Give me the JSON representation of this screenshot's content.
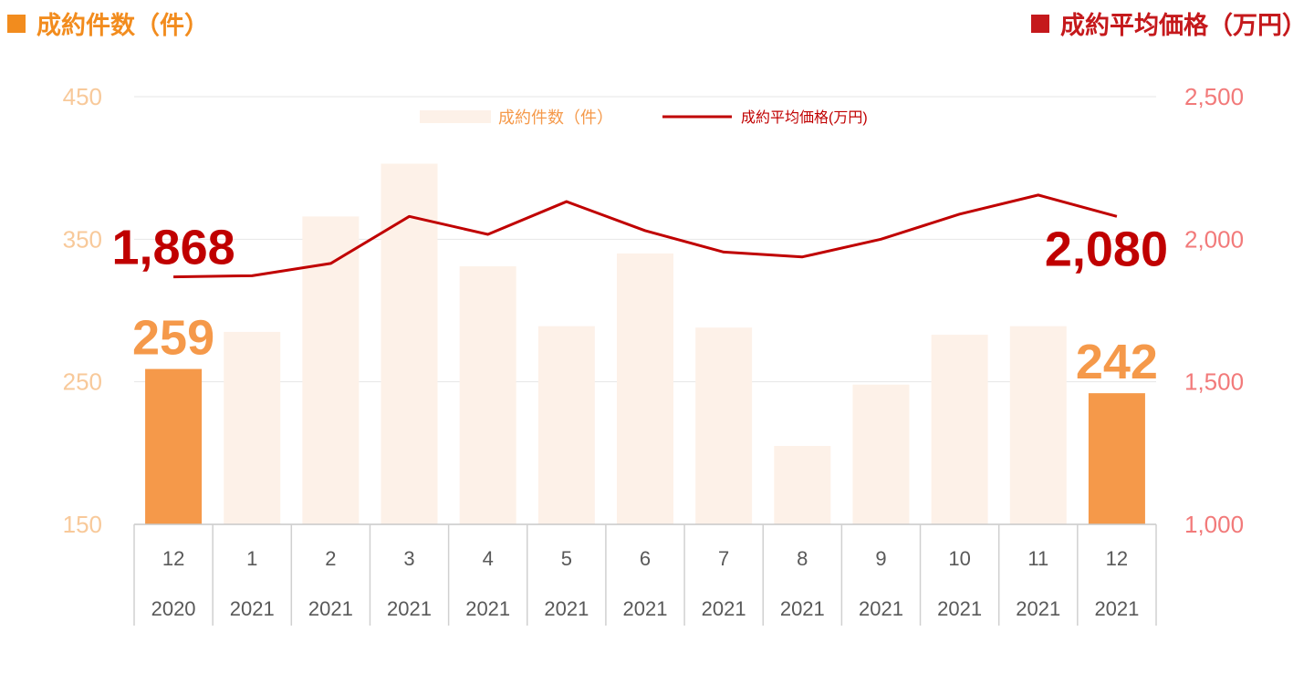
{
  "header": {
    "left_title": "成約件数（件）",
    "right_title": "成約平均価格（万円）"
  },
  "colors": {
    "left_accent": "#f28c1e",
    "right_accent": "#c5191c",
    "bar_light": "#fdf1e8",
    "bar_highlight": "#f5994a",
    "left_axis_text": "#f8c99a",
    "right_axis_text": "#f27a7a",
    "line": "#c00000",
    "table_text": "#595959"
  },
  "chart_data": {
    "type": "bar",
    "legend": {
      "position": "top-center",
      "bar_label": "成約件数（件）",
      "line_label": "成約平均価格(万円)"
    },
    "categories": [
      {
        "month": "12",
        "year": "2020"
      },
      {
        "month": "1",
        "year": "2021"
      },
      {
        "month": "2",
        "year": "2021"
      },
      {
        "month": "3",
        "year": "2021"
      },
      {
        "month": "4",
        "year": "2021"
      },
      {
        "month": "5",
        "year": "2021"
      },
      {
        "month": "6",
        "year": "2021"
      },
      {
        "month": "7",
        "year": "2021"
      },
      {
        "month": "8",
        "year": "2021"
      },
      {
        "month": "9",
        "year": "2021"
      },
      {
        "month": "10",
        "year": "2021"
      },
      {
        "month": "11",
        "year": "2021"
      },
      {
        "month": "12",
        "year": "2021"
      }
    ],
    "series": [
      {
        "name": "成約件数（件）",
        "type": "bar",
        "axis": "left",
        "values": [
          259,
          285,
          366,
          403,
          331,
          289,
          340,
          288,
          205,
          248,
          283,
          289,
          242
        ],
        "highlight": [
          true,
          false,
          false,
          false,
          false,
          false,
          false,
          false,
          false,
          false,
          false,
          false,
          true
        ]
      },
      {
        "name": "成約平均価格(万円)",
        "type": "line",
        "axis": "right",
        "values": [
          1868,
          1872,
          1915,
          2080,
          2017,
          2132,
          2030,
          1955,
          1938,
          2000,
          2088,
          2155,
          2080
        ]
      }
    ],
    "left_axis": {
      "min": 150,
      "max": 450,
      "ticks": [
        "150",
        "250",
        "350",
        "450"
      ]
    },
    "right_axis": {
      "min": 1000,
      "max": 2500,
      "ticks": [
        "1,000",
        "1,500",
        "2,000",
        "2,500"
      ]
    },
    "annotations": {
      "bar_first": "259",
      "bar_last": "242",
      "line_first": "1,868",
      "line_last": "2,080"
    },
    "grid": true
  }
}
